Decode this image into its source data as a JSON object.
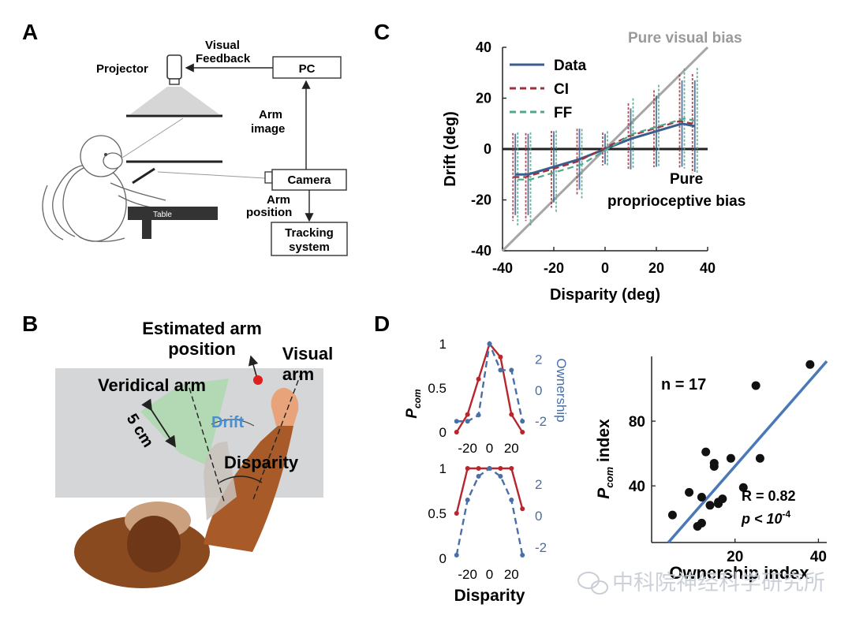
{
  "panels": {
    "a": {
      "letter": "A",
      "labels": {
        "projector": "Projector",
        "visual_feedback_1": "Visual",
        "visual_feedback_2": "Feedback",
        "pc": "PC",
        "arm_image_1": "Arm",
        "arm_image_2": "image",
        "camera": "Camera",
        "arm_position_1": "Arm",
        "arm_position_2": "position",
        "tracking_1": "Tracking",
        "tracking_2": "system",
        "table": "Table"
      }
    },
    "b": {
      "letter": "B",
      "labels": {
        "estimated_1": "Estimated arm",
        "estimated_2": "position",
        "visual_1": "Visual",
        "visual_2": "arm",
        "veridical": "Veridical arm",
        "drift": "Drift",
        "five_cm": "5 cm",
        "disparity": "Disparity"
      },
      "colors": {
        "drift": "#4a8fd0",
        "marker": "#e01e1e",
        "arm": "#b5612a"
      }
    },
    "c": {
      "letter": "C",
      "pure_visual_label": "Pure visual bias",
      "pure_proprio_1": "Pure",
      "pure_proprio_2": "proprioceptive bias"
    },
    "d": {
      "letter": "D",
      "top_left_ylabel_main": "P",
      "top_left_ylabel_sub": "com",
      "right_axis_label": "Ownership",
      "xlabel": "Disparity",
      "scatter_n": "n = 17",
      "scatter_r": "R = 0.82",
      "scatter_p_main": "p < 10",
      "scatter_p_exp": "-4",
      "scatter_ylabel_main": "P",
      "scatter_ylabel_sub": "com",
      "scatter_ylabel_rest": " index",
      "scatter_xlabel": "Ownership index"
    }
  },
  "watermark": "中科院神经科学研究所",
  "colors": {
    "data": "#3c5e8e",
    "ci": "#a0303a",
    "ff": "#4fa88a",
    "identity": "#a6a6a6",
    "pcom": "#b5262d",
    "ownership": "#4a6fa5",
    "fit": "#4a78b8"
  },
  "chart_data": [
    {
      "id": "C",
      "type": "line",
      "xlabel": "Disparity (deg)",
      "ylabel": "Drift (deg)",
      "xlim": [
        -40,
        40
      ],
      "ylim": [
        -40,
        40
      ],
      "xticks": [
        -40,
        -20,
        0,
        20,
        40
      ],
      "yticks": [
        -40,
        -20,
        0,
        20,
        40
      ],
      "legend_position": "top-left",
      "x": [
        -35,
        -30,
        -20,
        -10,
        0,
        10,
        20,
        30,
        35
      ],
      "series": [
        {
          "name": "Data",
          "values": [
            -10,
            -10,
            -7,
            -4,
            0,
            4,
            7,
            10,
            9
          ]
        },
        {
          "name": "CI",
          "values": [
            -11,
            -11,
            -8,
            -5,
            0,
            5,
            8,
            11,
            10
          ]
        },
        {
          "name": "FF",
          "values": [
            -12,
            -12,
            -9,
            -6,
            0,
            6,
            9,
            12,
            11
          ]
        }
      ],
      "error_half_width": [
        16,
        16,
        14,
        12,
        6,
        12,
        14,
        17,
        18
      ],
      "identity_line": [
        [
          -40,
          -40
        ],
        [
          40,
          40
        ]
      ]
    },
    {
      "id": "D-top",
      "type": "line",
      "xticks": [
        -20,
        0,
        20
      ],
      "yticks_left": [
        0,
        0.5,
        1
      ],
      "yticks_right": [
        -2,
        0,
        2
      ],
      "x": [
        -30,
        -20,
        -10,
        0,
        10,
        20,
        30
      ],
      "series": [
        {
          "name": "P_com",
          "axis": "left",
          "values": [
            0,
            0.2,
            0.6,
            1.0,
            0.85,
            0.2,
            0
          ]
        },
        {
          "name": "Ownership",
          "axis": "right",
          "values": [
            -2.0,
            -2.0,
            -1.6,
            3.0,
            1.3,
            1.3,
            -2.0
          ]
        }
      ]
    },
    {
      "id": "D-bottom",
      "type": "line",
      "xlabel": "Disparity",
      "xticks": [
        -20,
        0,
        20
      ],
      "yticks_left": [
        0,
        0.5,
        1
      ],
      "yticks_right": [
        -2,
        0,
        2
      ],
      "x": [
        -30,
        -20,
        -10,
        0,
        10,
        20,
        30
      ],
      "series": [
        {
          "name": "P_com",
          "axis": "left",
          "values": [
            0.5,
            1.0,
            1.0,
            1.0,
            1.0,
            1.0,
            0.55
          ]
        },
        {
          "name": "Ownership",
          "axis": "right",
          "values": [
            -2.5,
            1.0,
            2.5,
            3.0,
            2.5,
            1.0,
            -2.5
          ]
        }
      ]
    },
    {
      "id": "D-scatter",
      "type": "scatter",
      "xlabel": "Ownership index",
      "ylabel": "P_com index",
      "xlim": [
        0,
        42
      ],
      "ylim": [
        5,
        120
      ],
      "xticks": [
        20,
        40
      ],
      "yticks": [
        40,
        80
      ],
      "points": [
        [
          5,
          22
        ],
        [
          9,
          36
        ],
        [
          11,
          15
        ],
        [
          12,
          17
        ],
        [
          12,
          33
        ],
        [
          13,
          61
        ],
        [
          14,
          28
        ],
        [
          15,
          54
        ],
        [
          15,
          52
        ],
        [
          16,
          30
        ],
        [
          16,
          29
        ],
        [
          17,
          32
        ],
        [
          19,
          57
        ],
        [
          22,
          39
        ],
        [
          25,
          102
        ],
        [
          26,
          57
        ],
        [
          38,
          115
        ]
      ],
      "fit_line": [
        [
          4,
          5
        ],
        [
          42,
          117
        ]
      ]
    }
  ]
}
